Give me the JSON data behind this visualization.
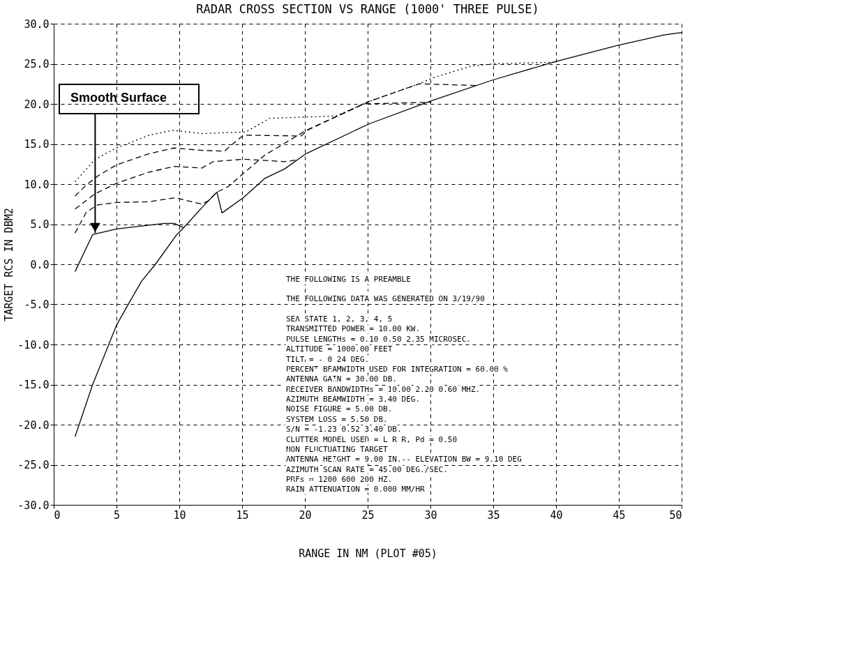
{
  "chart_data": {
    "type": "line",
    "title": "RADAR CROSS SECTION VS RANGE (1000' THREE PULSE)",
    "xlabel": "RANGE IN NM (PLOT #05)",
    "ylabel": "TARGET RCS IN DBM2",
    "xlim": [
      0,
      50
    ],
    "xticks": [
      0,
      5,
      10,
      15,
      20,
      25,
      30,
      35,
      40,
      45,
      50
    ],
    "ylim": [
      -30,
      30
    ],
    "yticks": [
      {
        "value": -30,
        "label": "-30.0"
      },
      {
        "value": -25,
        "label": "-25.0"
      },
      {
        "value": -20,
        "label": "-20.0"
      },
      {
        "value": -15,
        "label": "-15.0"
      },
      {
        "value": -10,
        "label": "-10.0"
      },
      {
        "value": -5,
        "label": "-5.0"
      },
      {
        "value": 0,
        "label": "0.0"
      },
      {
        "value": 5,
        "label": "5.0"
      },
      {
        "value": 10,
        "label": "10.0"
      },
      {
        "value": 15,
        "label": "15.0"
      },
      {
        "value": 20,
        "label": "20.0"
      },
      {
        "value": 25,
        "label": "25.0"
      },
      {
        "value": 30,
        "label": "30.0"
      }
    ],
    "grid": true,
    "marker": "none",
    "series": [
      {
        "color": "#000000",
        "line_style": "solid",
        "x": [
          1.7,
          3.1,
          5.0,
          5.9,
          7.0,
          8.1,
          9.8,
          10.2,
          12.0,
          13.0,
          13.4,
          15.1,
          16.8,
          18.4,
          20.1,
          25.1,
          30.1,
          35.0,
          40.0,
          44.9,
          48.6,
          50.0
        ],
        "values": [
          -21.5,
          -15.0,
          -7.6,
          -5.1,
          -2.1,
          0.0,
          3.7,
          4.3,
          7.4,
          9.0,
          6.4,
          8.3,
          10.7,
          11.9,
          13.8,
          17.5,
          20.4,
          23.0,
          25.3,
          27.3,
          28.6,
          28.9
        ]
      },
      {
        "color": "#000000",
        "line_style": "solid",
        "x": [
          1.7,
          3.1,
          5.0,
          8.8,
          9.6,
          10.3
        ],
        "values": [
          -0.9,
          3.7,
          4.4,
          5.1,
          5.1,
          4.6
        ]
      },
      {
        "color": "#000000",
        "line_style": "dashed",
        "x": [
          1.7,
          2.6,
          3.5,
          5.0,
          7.6,
          9.7,
          10.2,
          11.8,
          12.3,
          13.0,
          13.9,
          16.8,
          20.1,
          25.1,
          29.1,
          33.6
        ],
        "values": [
          3.9,
          6.5,
          7.4,
          7.7,
          7.8,
          8.3,
          8.1,
          7.5,
          7.9,
          9.0,
          9.7,
          13.6,
          16.7,
          20.3,
          22.5,
          22.3
        ]
      },
      {
        "color": "#000000",
        "line_style": "dashed",
        "x": [
          1.7,
          3.3,
          5.0,
          7.6,
          9.6,
          11.8,
          12.7,
          15.1,
          18.4,
          19.3
        ],
        "values": [
          6.9,
          8.8,
          10.1,
          11.5,
          12.2,
          12.0,
          12.8,
          13.1,
          12.8,
          13.0
        ]
      },
      {
        "color": "#000000",
        "line_style": "dashed",
        "x": [
          1.7,
          2.6,
          3.6,
          5.0,
          7.6,
          9.6,
          11.8,
          13.6,
          14.1,
          15.1,
          19.7,
          20.3,
          24.7,
          30.0
        ],
        "values": [
          8.5,
          9.9,
          11.1,
          12.4,
          13.8,
          14.5,
          14.2,
          14.1,
          14.8,
          16.1,
          16.0,
          16.8,
          20.0,
          20.2
        ]
      },
      {
        "color": "#000000",
        "line_style": "dotted",
        "x": [
          1.7,
          3.3,
          5.0,
          7.6,
          9.5,
          11.8,
          15.3,
          17.2,
          22.5,
          25.1,
          29.1,
          30.1,
          33.2,
          35.0,
          40.0
        ],
        "values": [
          10.3,
          13.1,
          14.5,
          16.1,
          16.7,
          16.3,
          16.5,
          18.2,
          18.5,
          20.3,
          22.5,
          23.2,
          24.7,
          25.0,
          25.2
        ]
      }
    ],
    "annotations": [
      {
        "text": "Smooth Surface",
        "x": 3.3,
        "y": 3.9
      },
      "THE FOLLOWING IS A PREAMBLE",
      "THE FOLLOWING DATA WAS GENERATED ON 3/19/90",
      "SEA STATE 1, 2, 3, 4, 5",
      "TRANSMITTED POWER = 10.00 KW.",
      "PULSE LENGTHs = 0.10 0.50 2.35 MICROSEC.",
      "ALTITUDE = 1000.00 FEET",
      "TILT = - 0.24 DEG.",
      "PERCENT BEAMWIDTH USED FOR INTEGRATION = 60.00 %",
      "ANTENNA GAIN = 30.00 DB.",
      "RECEIVER BANDWIDTHs = 10.00 2.20 0.60 MHZ.",
      "AZIMUTH BEAMWIDTH = 3.40 DEG.",
      "NOISE FIGURE = 5.00 DB.",
      "SYSTEM LOSS = 5.50 DB.",
      "S/N = -1.23 0.52 3.40 DB.",
      "CLUTTER MODEL USED = L R R, Pd = 0.50",
      "NON FLUCTUATING TARGET",
      "ANTENNA HEIGHT = 9.00 IN.-- ELEVATION BW = 9.10 DEG",
      "AZIMUTH SCAN RATE = 45.00 DEG./SEC.",
      "PRFs = 1200 600 200 HZ.",
      "RAIN ATTENUATION = 0.000 MM/HR"
    ]
  }
}
